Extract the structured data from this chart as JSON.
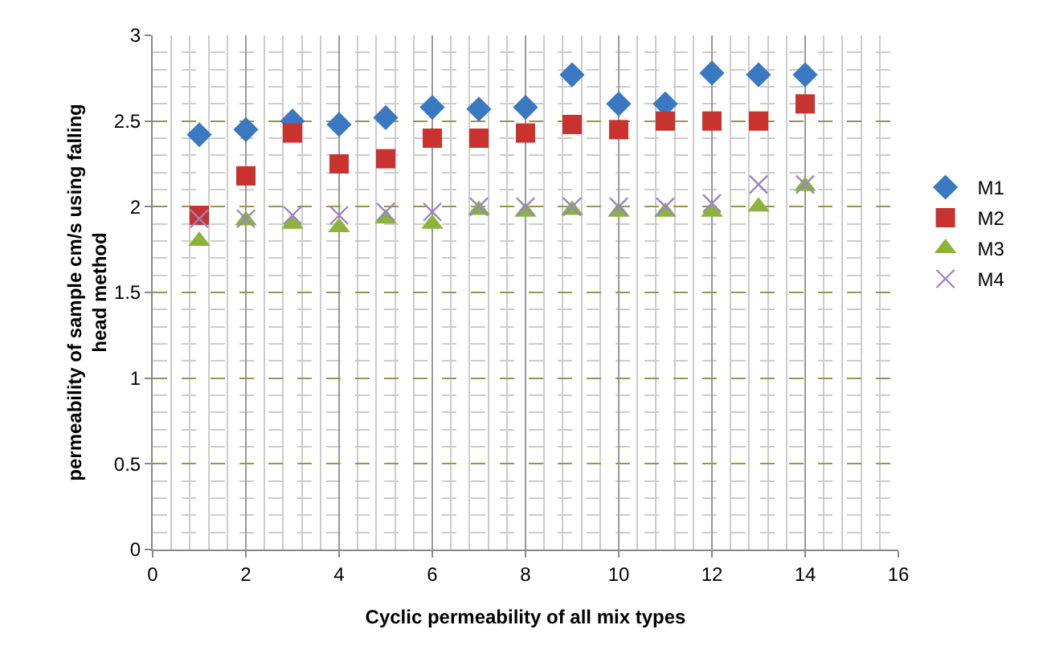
{
  "chart_data": {
    "type": "scatter",
    "xlabel": "Cyclic permeability of all mix types",
    "ylabel": "permeability of sample cm/s using falling head method",
    "x": [
      1,
      2,
      3,
      4,
      5,
      6,
      7,
      8,
      9,
      10,
      11,
      12,
      13,
      14
    ],
    "series": [
      {
        "name": "M1",
        "color": "#3a78c2",
        "marker": "diamond",
        "values": [
          2.42,
          2.45,
          2.5,
          2.48,
          2.52,
          2.58,
          2.57,
          2.58,
          2.77,
          2.6,
          2.6,
          2.78,
          2.77,
          2.77
        ]
      },
      {
        "name": "M2",
        "color": "#c8332f",
        "marker": "square",
        "values": [
          1.95,
          2.18,
          2.43,
          2.25,
          2.28,
          2.4,
          2.4,
          2.43,
          2.48,
          2.45,
          2.5,
          2.5,
          2.5,
          2.6
        ]
      },
      {
        "name": "M3",
        "color": "#8db33a",
        "marker": "triangle",
        "values": [
          1.8,
          1.92,
          1.9,
          1.88,
          1.93,
          1.9,
          1.98,
          1.97,
          1.98,
          1.97,
          1.97,
          1.97,
          2.0,
          2.12
        ]
      },
      {
        "name": "M4",
        "color": "#9b84c4",
        "marker": "cross",
        "values": [
          1.93,
          1.93,
          1.95,
          1.95,
          1.97,
          1.97,
          2.0,
          2.0,
          2.0,
          2.0,
          2.0,
          2.02,
          2.13,
          2.13
        ]
      }
    ],
    "xlim": [
      0,
      16
    ],
    "xticks": [
      0,
      2,
      4,
      6,
      8,
      10,
      12,
      14,
      16
    ],
    "ylim": [
      0,
      3
    ],
    "yticks": [
      0,
      0.5,
      1,
      1.5,
      2,
      2.5,
      3
    ],
    "grid": true,
    "legend": "right"
  }
}
